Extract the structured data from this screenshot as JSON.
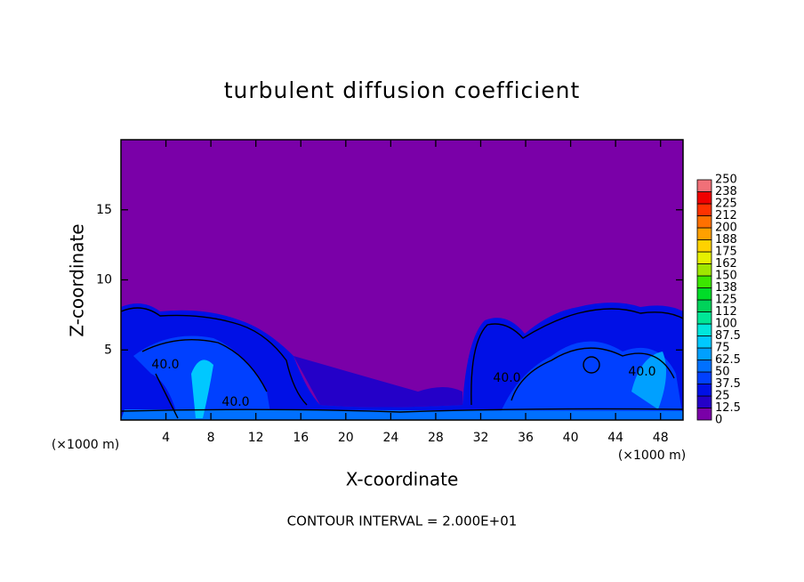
{
  "chart_data": {
    "type": "contour",
    "title": "turbulent diffusion coefficient",
    "x_label": "X-coordinate",
    "y_label": "Z-coordinate",
    "x_unit_label": "(×1000 m)",
    "note": "CONTOUR INTERVAL = 2.000E+01",
    "xlim": [
      0,
      50
    ],
    "xticks": [
      4,
      8,
      12,
      16,
      20,
      24,
      28,
      32,
      36,
      40,
      44,
      48
    ],
    "ylim": [
      0,
      20
    ],
    "yticks": [
      5,
      10,
      15
    ],
    "contour_labels": [
      "40.0",
      "40.0",
      "40.0",
      "40.0"
    ],
    "colorbar": {
      "levels": [
        0,
        12.5,
        25,
        37.5,
        50,
        62.5,
        75,
        87.5,
        100,
        {
          "value": 112.5,
          "label": "112"
        },
        125,
        {
          "value": 137.5,
          "label": "138"
        },
        150,
        {
          "value": 162.5,
          "label": "162"
        },
        175,
        {
          "value": 187.5,
          "label": "188"
        },
        200,
        {
          "value": 212.5,
          "label": "212"
        },
        225,
        {
          "value": 237.5,
          "label": "238"
        },
        250
      ],
      "colors": [
        "#7a00a8",
        "#2400c8",
        "#0010e6",
        "#0040ff",
        "#0070ff",
        "#00a0ff",
        "#00c8ff",
        "#00e6dc",
        "#00e696",
        "#00d25a",
        "#00dc28",
        "#3ce600",
        "#a0e600",
        "#e6f000",
        "#ffd200",
        "#ffa000",
        "#ff7000",
        "#ff3200",
        "#f00000",
        "#f07078"
      ]
    }
  }
}
